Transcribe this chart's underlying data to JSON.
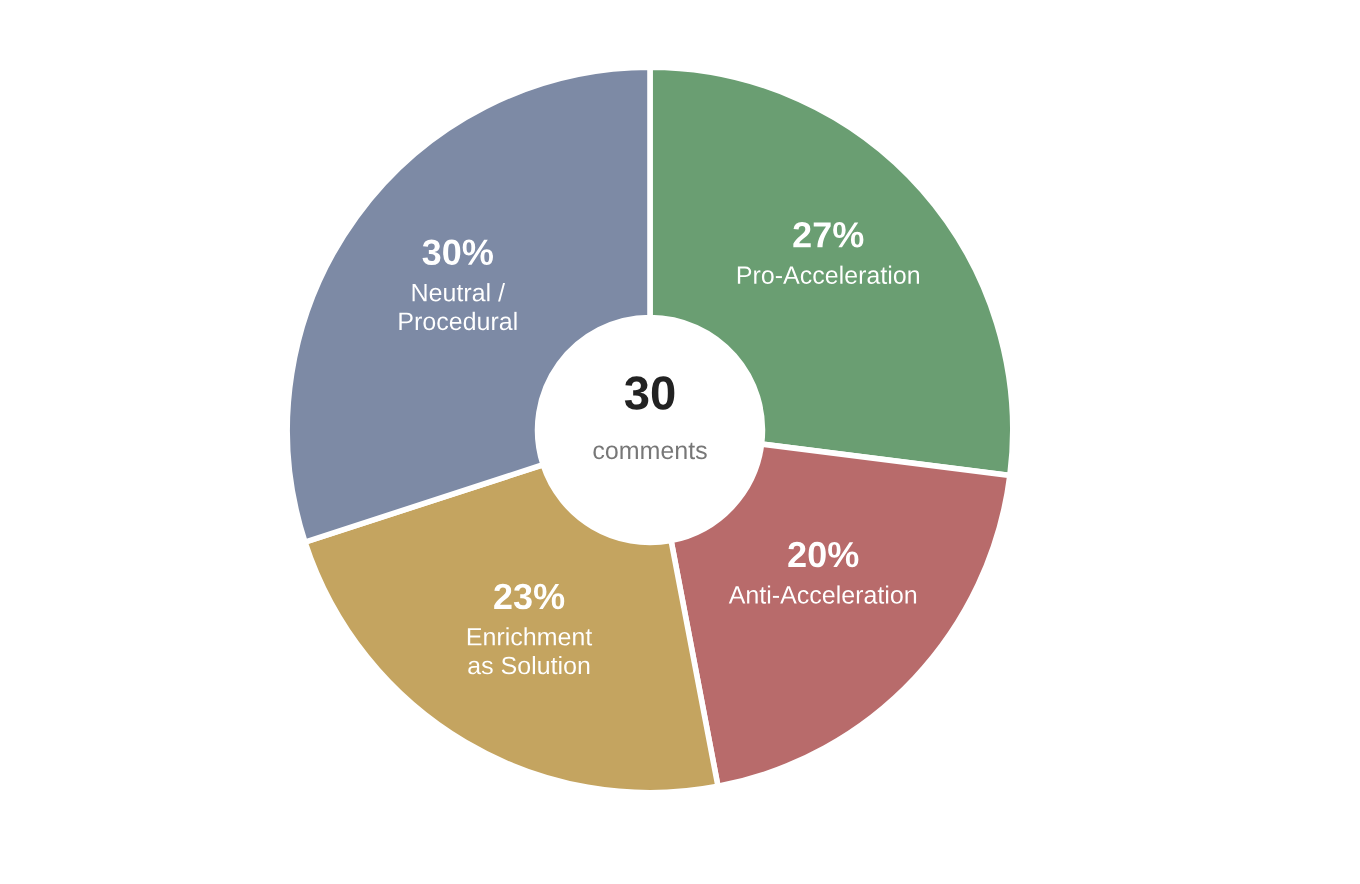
{
  "chart_data": {
    "type": "donut",
    "categories": [
      "Pro-Acceleration",
      "Anti-Acceleration",
      "Enrichment\nas Solution",
      "Neutral /\nProcedural"
    ],
    "values": [
      27,
      20,
      23,
      30
    ],
    "colors": [
      "#6a9e72",
      "#b86b6b",
      "#c4a460",
      "#7d8aa5"
    ],
    "value_labels": [
      "27%",
      "20%",
      "23%",
      "30%"
    ],
    "legend": false,
    "annotations": [
      "30",
      "comments"
    ]
  }
}
